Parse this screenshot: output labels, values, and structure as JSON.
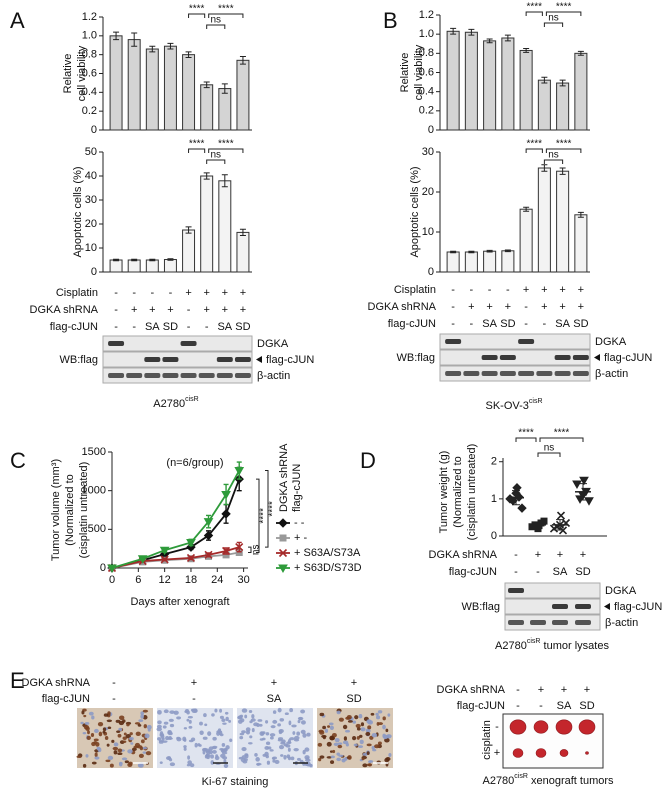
{
  "letters": [
    "A",
    "B",
    "C",
    "D",
    "E"
  ],
  "chart_data": [
    {
      "type": "bar",
      "ylabel": [
        "Relative",
        "cell viability"
      ],
      "values": [
        1.0,
        0.96,
        0.86,
        0.89,
        0.8,
        0.48,
        0.44,
        0.74
      ],
      "errors": [
        0.04,
        0.07,
        0.03,
        0.03,
        0.03,
        0.03,
        0.05,
        0.04
      ],
      "ylim": [
        0,
        1.2
      ],
      "yticks": [
        0,
        0.2,
        0.4,
        0.6,
        0.8,
        {
          "value": 1,
          "label": "1.0"
        },
        1.2
      ],
      "color": "#d4d4d4",
      "significance": [
        "****",
        "ns",
        "****"
      ]
    },
    {
      "type": "bar",
      "ylabel": [
        "Apoptotic cells (%)"
      ],
      "values": [
        5,
        5,
        5,
        5.2,
        17.5,
        40,
        38,
        16.5
      ],
      "errors": [
        0.3,
        0.3,
        0.3,
        0.3,
        1.3,
        1.3,
        2.5,
        1.3
      ],
      "ylim": [
        0,
        50
      ],
      "yticks": [
        0,
        10,
        20,
        30,
        40,
        50
      ],
      "color": "#f3f3f3",
      "significance": [
        "****",
        "ns",
        "****"
      ]
    },
    {
      "type": "bar",
      "ylabel": [
        "Relative",
        "cell viability"
      ],
      "values": [
        1.03,
        1.02,
        0.93,
        0.96,
        0.83,
        0.52,
        0.49,
        0.8
      ],
      "errors": [
        0.03,
        0.03,
        0.02,
        0.03,
        0.02,
        0.03,
        0.03,
        0.02
      ],
      "ylim": [
        0,
        1.2
      ],
      "yticks": [
        0,
        0.2,
        0.4,
        0.6,
        0.8,
        {
          "value": 1,
          "label": "1.0"
        },
        1.2
      ],
      "color": "#d4d4d4",
      "significance": [
        "****",
        "ns",
        "****"
      ]
    },
    {
      "type": "bar",
      "ylabel": [
        "Apoptotic cells (%)"
      ],
      "values": [
        5,
        5,
        5.2,
        5.3,
        15.7,
        26,
        25.2,
        14.3
      ],
      "errors": [
        0.2,
        0.2,
        0.2,
        0.2,
        0.5,
        0.8,
        0.8,
        0.6
      ],
      "ylim": [
        0,
        30
      ],
      "yticks": [
        0,
        10,
        20,
        30
      ],
      "color": "#f3f3f3",
      "significance": [
        "****",
        "ns",
        "****"
      ]
    },
    {
      "type": "line",
      "ylabel": [
        "Tumor volume (mm³)",
        "(Normalized to",
        "(cisplatin untreated)"
      ],
      "xlabel": "Days after xenograft",
      "annotation": "(n=6/group)",
      "x": [
        0,
        7,
        12,
        18,
        22,
        26,
        29
      ],
      "xlim": [
        0,
        31
      ],
      "xticks": [
        0,
        6,
        12,
        18,
        24,
        30
      ],
      "ylim": [
        0,
        1500
      ],
      "yticks": [
        0,
        500,
        1000,
        1500
      ],
      "legend_title": [
        "DGKA shRNA",
        "flag-cJUN"
      ],
      "series": [
        {
          "name": "- -",
          "color": "#111111",
          "marker": "diamond",
          "values": [
            0,
            100,
            180,
            270,
            420,
            700,
            1150
          ],
          "errors": [
            0,
            10,
            20,
            30,
            60,
            120,
            150
          ]
        },
        {
          "name": "+ -",
          "color": "#999999",
          "marker": "square",
          "values": [
            0,
            80,
            100,
            120,
            150,
            170,
            200
          ],
          "errors": [
            0,
            10,
            10,
            15,
            15,
            20,
            25
          ]
        },
        {
          "name": "+ S63A/S73A",
          "color": "#a52a2a",
          "marker": "cross",
          "values": [
            0,
            90,
            110,
            130,
            170,
            220,
            270
          ],
          "errors": [
            0,
            10,
            15,
            20,
            25,
            40,
            60
          ]
        },
        {
          "name": "+ S63D/S73D",
          "color": "#2e9b3a",
          "marker": "triangle",
          "values": [
            0,
            120,
            230,
            330,
            600,
            950,
            1260
          ],
          "errors": [
            0,
            15,
            25,
            40,
            80,
            130,
            110
          ]
        }
      ],
      "significance": [
        "****",
        "****",
        "ns"
      ]
    },
    {
      "type": "scatter",
      "ylabel": [
        "Tumor weight (g)",
        "(Normalized to",
        "(cisplatin untreated)"
      ],
      "ylim": [
        0,
        2.1
      ],
      "yticks": [
        0,
        1,
        2
      ],
      "markers": [
        "diamond",
        "square",
        "cross",
        "triangle"
      ],
      "groups": [
        {
          "values": [
            1.0,
            0.95,
            1.15,
            1.05,
            0.75,
            1.3
          ],
          "mean": 1.03,
          "sd": 0.19
        },
        {
          "values": [
            0.25,
            0.3,
            0.2,
            0.35,
            0.4,
            0.28
          ],
          "mean": 0.3,
          "sd": 0.07
        },
        {
          "values": [
            0.2,
            0.25,
            0.3,
            0.15,
            0.35,
            0.55
          ],
          "mean": 0.3,
          "sd": 0.14
        },
        {
          "values": [
            1.4,
            1.0,
            1.1,
            1.2,
            0.95,
            1.5
          ],
          "mean": 1.19,
          "sd": 0.22
        }
      ],
      "significance": [
        "****",
        "ns",
        "****"
      ]
    }
  ],
  "A": {
    "treatments": [
      {
        "label": "Cisplatin",
        "values": [
          "-",
          "-",
          "-",
          "-",
          "+",
          "+",
          "+",
          "+"
        ]
      },
      {
        "label": "DGKA shRNA",
        "values": [
          "-",
          "+",
          "+",
          "+",
          "-",
          "+",
          "+",
          "+"
        ]
      },
      {
        "label": "flag-cJUN",
        "values": [
          "-",
          "-",
          "SA",
          "SD",
          "-",
          "-",
          "SA",
          "SD"
        ]
      }
    ],
    "blot": {
      "rows": [
        "DGKA",
        "flag-cJUN",
        "β-actin"
      ],
      "probe": "WB:flag"
    },
    "caption": {
      "text": "A2780",
      "sup": "cisR"
    }
  },
  "B": {
    "treatments": [
      {
        "label": "Cisplatin",
        "values": [
          "-",
          "-",
          "-",
          "-",
          "+",
          "+",
          "+",
          "+"
        ]
      },
      {
        "label": "DGKA shRNA",
        "values": [
          "-",
          "+",
          "+",
          "+",
          "-",
          "+",
          "+",
          "+"
        ]
      },
      {
        "label": "flag-cJUN",
        "values": [
          "-",
          "-",
          "SA",
          "SD",
          "-",
          "-",
          "SA",
          "SD"
        ]
      }
    ],
    "blot": {
      "rows": [
        "DGKA",
        "flag-cJUN",
        "β-actin"
      ],
      "probe": "WB:flag"
    },
    "caption": {
      "text": "SK-OV-3",
      "sup": "cisR"
    }
  },
  "D": {
    "treatments": [
      {
        "label": "DGKA shRNA",
        "values": [
          "-",
          "+",
          "+",
          "+"
        ]
      },
      {
        "label": "flag-cJUN",
        "values": [
          "-",
          "-",
          "SA",
          "SD"
        ]
      }
    ],
    "blot": {
      "rows": [
        "DGKA",
        "flag-cJUN",
        "β-actin"
      ],
      "probe": "WB:flag"
    },
    "caption": {
      "text": "A2780",
      "sup": "cisR",
      "tail": " tumor lysates"
    }
  },
  "E": {
    "treatments": [
      {
        "label": "DGKA shRNA",
        "values": [
          "-",
          "+",
          "+",
          "+"
        ]
      },
      {
        "label": "flag-cJUN",
        "values": [
          "-",
          "-",
          "SA",
          "SD"
        ]
      }
    ],
    "stain": "Ki-67 staining",
    "tumor_treatments": [
      {
        "label": "DGKA shRNA",
        "values": [
          "-",
          "+",
          "+",
          "+"
        ]
      },
      {
        "label": "flag-cJUN",
        "values": [
          "-",
          "-",
          "SA",
          "SD"
        ]
      }
    ],
    "tumor_rows": {
      "label": "cisplatin",
      "values": [
        "-",
        "+"
      ]
    },
    "caption": {
      "text": "A2780",
      "sup": "cisR",
      "tail": " xenograft tumors"
    }
  }
}
